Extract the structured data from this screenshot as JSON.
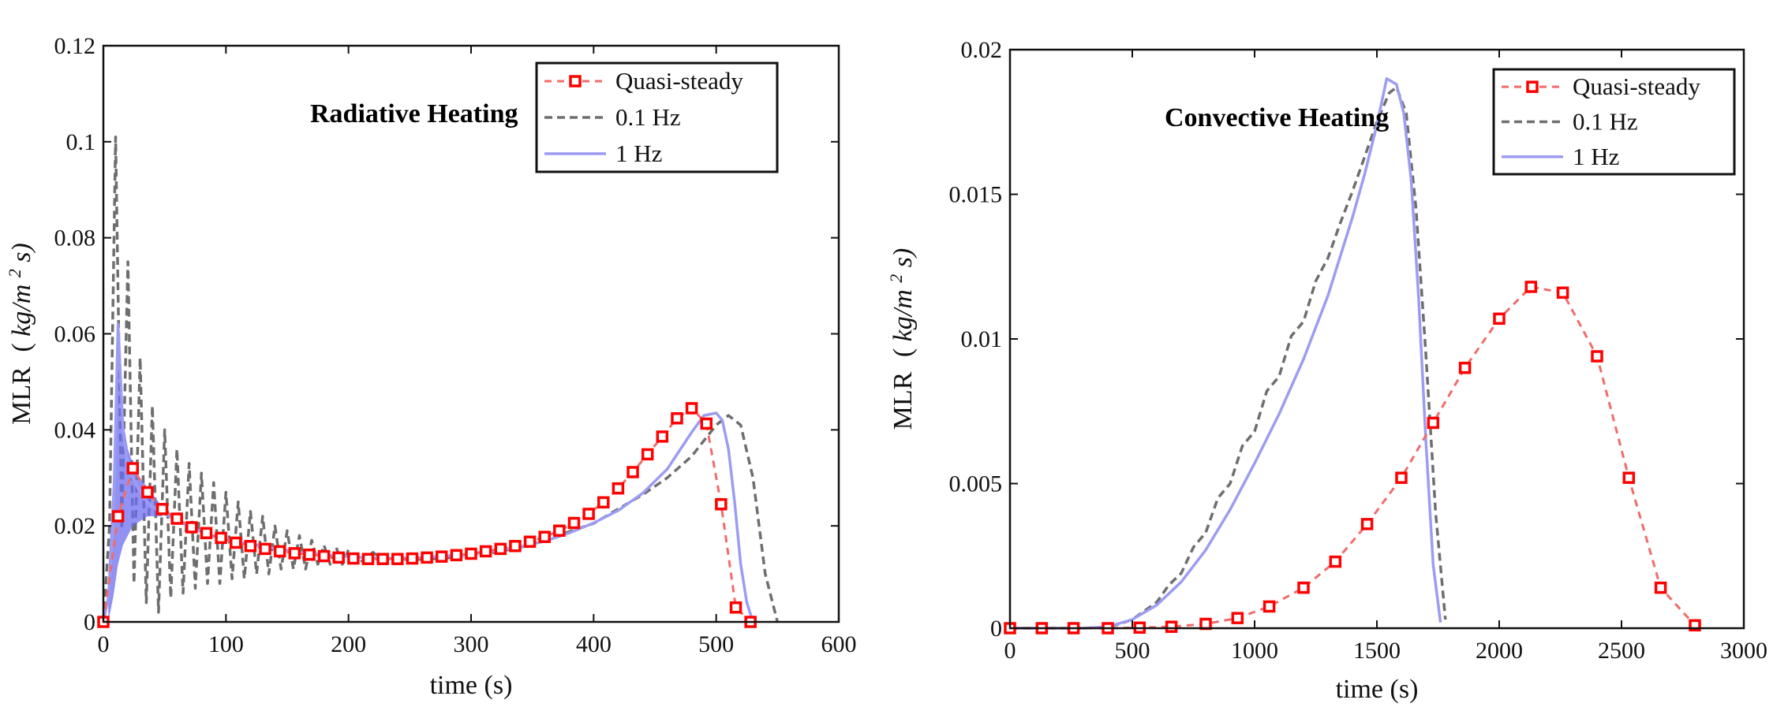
{
  "colors": {
    "quasi_steady": "#ff0000",
    "quasi_steady_line": "#f26b6b",
    "hz01": "#6e6e6e",
    "hz1": "#9c9cf2",
    "hz1_fill": "#6d6df0",
    "axes": "#111111"
  },
  "chart_data": [
    {
      "type": "line",
      "title": "Radiative Heating",
      "xlabel": "time (s)",
      "ylabel_main": "MLR",
      "ylabel_unit_left": "(",
      "ylabel_unit_mid": "kg/m",
      "ylabel_unit_sup": "2",
      "ylabel_unit_right": "s)",
      "xlim": [
        0,
        600
      ],
      "ylim": [
        0,
        0.12
      ],
      "xticks": [
        0,
        100,
        200,
        300,
        400,
        500,
        600
      ],
      "yticks": [
        0,
        0.02,
        0.04,
        0.06,
        0.08,
        0.1,
        0.12
      ],
      "xtick_labels": [
        "0",
        "100",
        "200",
        "300",
        "400",
        "500",
        "600"
      ],
      "ytick_labels": [
        "0",
        "0.02",
        "0.04",
        "0.06",
        "0.08",
        "0.1",
        "0.12"
      ],
      "legend_position": "top-right",
      "series": [
        {
          "name": "Quasi-steady",
          "style": "dashed-square-markers",
          "x": [
            0,
            12,
            24,
            36,
            48,
            60,
            72,
            84,
            96,
            108,
            120,
            132,
            144,
            156,
            168,
            180,
            192,
            204,
            216,
            228,
            240,
            252,
            264,
            276,
            288,
            300,
            312,
            324,
            336,
            348,
            360,
            372,
            384,
            396,
            408,
            420,
            432,
            444,
            456,
            468,
            480,
            492,
            504,
            516,
            528
          ],
          "y": [
            0,
            0.022,
            0.032,
            0.027,
            0.0235,
            0.0215,
            0.0197,
            0.0185,
            0.0175,
            0.0165,
            0.0158,
            0.0152,
            0.0147,
            0.0143,
            0.014,
            0.0137,
            0.0134,
            0.0132,
            0.0131,
            0.0131,
            0.0131,
            0.0132,
            0.0134,
            0.0136,
            0.0139,
            0.0142,
            0.0147,
            0.0152,
            0.0158,
            0.0167,
            0.0177,
            0.019,
            0.0206,
            0.0225,
            0.0249,
            0.0278,
            0.0312,
            0.0349,
            0.0386,
            0.0424,
            0.0445,
            0.0413,
            0.0245,
            0.003,
            0.0
          ]
        },
        {
          "name": "0.1 Hz",
          "style": "dashed",
          "x": [
            0,
            5,
            10,
            15,
            20,
            25,
            30,
            35,
            40,
            45,
            50,
            55,
            60,
            65,
            70,
            75,
            80,
            85,
            90,
            95,
            100,
            105,
            110,
            115,
            120,
            125,
            130,
            135,
            140,
            145,
            150,
            155,
            160,
            165,
            170,
            175,
            180,
            185,
            190,
            195,
            200,
            210,
            220,
            230,
            240,
            260,
            280,
            300,
            320,
            340,
            360,
            380,
            400,
            420,
            440,
            460,
            480,
            500,
            510,
            520,
            530,
            540,
            550
          ],
          "y": [
            0,
            0.02,
            0.101,
            0.02,
            0.075,
            0.008,
            0.055,
            0.004,
            0.045,
            0.002,
            0.04,
            0.005,
            0.036,
            0.006,
            0.033,
            0.007,
            0.031,
            0.008,
            0.029,
            0.008,
            0.027,
            0.009,
            0.025,
            0.009,
            0.023,
            0.01,
            0.022,
            0.01,
            0.02,
            0.011,
            0.019,
            0.011,
            0.018,
            0.011,
            0.017,
            0.012,
            0.016,
            0.012,
            0.0155,
            0.012,
            0.015,
            0.0125,
            0.0145,
            0.0125,
            0.013,
            0.013,
            0.0133,
            0.0138,
            0.0145,
            0.0155,
            0.017,
            0.0188,
            0.0205,
            0.0235,
            0.0265,
            0.03,
            0.0345,
            0.041,
            0.043,
            0.041,
            0.03,
            0.01,
            0.0
          ]
        },
        {
          "name": "1 Hz",
          "style": "solid",
          "x": [
            0,
            4,
            8,
            12,
            16,
            20,
            24,
            28,
            32,
            36,
            40,
            45,
            50,
            60,
            70,
            80,
            90,
            100,
            120,
            140,
            160,
            180,
            200,
            220,
            240,
            260,
            280,
            300,
            320,
            340,
            360,
            380,
            400,
            420,
            440,
            460,
            480,
            490,
            500,
            505,
            510,
            515,
            520,
            525,
            530
          ],
          "y": [
            0,
            0.005,
            0.02,
            0.062,
            0.04,
            0.032,
            0.03,
            0.028,
            0.026,
            0.025,
            0.024,
            0.023,
            0.0225,
            0.0212,
            0.0198,
            0.0188,
            0.0178,
            0.0172,
            0.0162,
            0.0153,
            0.0145,
            0.014,
            0.0136,
            0.0133,
            0.0133,
            0.0134,
            0.0137,
            0.0141,
            0.0148,
            0.0156,
            0.0168,
            0.0185,
            0.0206,
            0.0232,
            0.0268,
            0.0318,
            0.0395,
            0.043,
            0.0435,
            0.042,
            0.036,
            0.025,
            0.012,
            0.004,
            0.0
          ]
        }
      ]
    },
    {
      "type": "line",
      "title": "Convective Heating",
      "xlabel": "time (s)",
      "ylabel_main": "MLR",
      "ylabel_unit_left": "(",
      "ylabel_unit_mid": "kg/m",
      "ylabel_unit_sup": "2",
      "ylabel_unit_right": "s)",
      "xlim": [
        0,
        3000
      ],
      "ylim": [
        0,
        0.02
      ],
      "xticks": [
        0,
        500,
        1000,
        1500,
        2000,
        2500,
        3000
      ],
      "yticks": [
        0,
        0.005,
        0.01,
        0.015,
        0.02
      ],
      "xtick_labels": [
        "0",
        "500",
        "1000",
        "1500",
        "2000",
        "2500",
        "3000"
      ],
      "ytick_labels": [
        "0",
        "0.005",
        "0.01",
        "0.015",
        "0.02"
      ],
      "legend_position": "top-right",
      "series": [
        {
          "name": "Quasi-steady",
          "style": "dashed-square-markers",
          "x": [
            0,
            130,
            260,
            400,
            530,
            660,
            800,
            930,
            1060,
            1200,
            1330,
            1460,
            1600,
            1730,
            1860,
            2000,
            2130,
            2260,
            2400,
            2530,
            2660,
            2800
          ],
          "y": [
            0,
            0,
            0,
            0,
            2e-05,
            5e-05,
            0.00015,
            0.00035,
            0.00075,
            0.0014,
            0.0023,
            0.0036,
            0.0052,
            0.0071,
            0.009,
            0.0107,
            0.0118,
            0.0116,
            0.0094,
            0.0052,
            0.0014,
            0.0001
          ]
        },
        {
          "name": "0.1 Hz",
          "style": "dashed",
          "x": [
            0,
            300,
            400,
            450,
            500,
            550,
            600,
            650,
            700,
            750,
            800,
            850,
            900,
            950,
            1000,
            1050,
            1100,
            1150,
            1200,
            1250,
            1300,
            1350,
            1400,
            1450,
            1500,
            1550,
            1580,
            1620,
            1660,
            1700,
            1740,
            1780
          ],
          "y": [
            0,
            0,
            5e-05,
            0.00015,
            0.0003,
            0.0006,
            0.0009,
            0.0015,
            0.0019,
            0.0028,
            0.0033,
            0.0045,
            0.005,
            0.0063,
            0.0068,
            0.0082,
            0.0087,
            0.0101,
            0.0106,
            0.012,
            0.0128,
            0.014,
            0.0151,
            0.0163,
            0.0175,
            0.0185,
            0.0187,
            0.0178,
            0.0145,
            0.0095,
            0.004,
            0.0003
          ]
        },
        {
          "name": "1 Hz",
          "style": "solid",
          "x": [
            0,
            300,
            400,
            500,
            600,
            700,
            800,
            900,
            1000,
            1100,
            1200,
            1300,
            1400,
            1450,
            1500,
            1540,
            1580,
            1610,
            1640,
            1670,
            1700,
            1730,
            1760
          ],
          "y": [
            0,
            0,
            5e-05,
            0.0003,
            0.0008,
            0.0016,
            0.0027,
            0.0041,
            0.0057,
            0.0074,
            0.0093,
            0.0115,
            0.0142,
            0.0157,
            0.0174,
            0.019,
            0.0188,
            0.0178,
            0.0155,
            0.0115,
            0.0065,
            0.0022,
            0.0002
          ]
        }
      ]
    }
  ]
}
